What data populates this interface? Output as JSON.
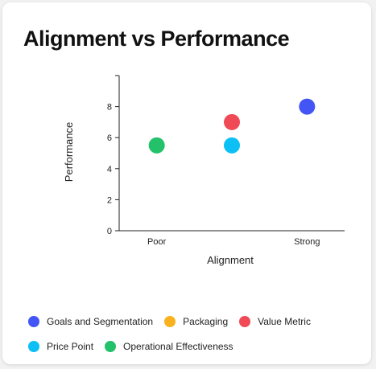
{
  "chart_data": {
    "type": "scatter",
    "title": "Alignment vs Performance",
    "xlabel": "Alignment",
    "ylabel": "Performance",
    "x_categories": [
      "Poor",
      "",
      "Strong"
    ],
    "xlim": [
      0,
      3
    ],
    "ylim": [
      0,
      10
    ],
    "yticks": [
      0,
      2,
      4,
      6,
      8
    ],
    "grid": false,
    "legend_position": "bottom",
    "series": [
      {
        "name": "Goals and Segmentation",
        "color": "#4355f5",
        "points": [
          {
            "x": "Strong",
            "y": 8
          }
        ]
      },
      {
        "name": "Packaging",
        "color": "#f9b21e",
        "points": []
      },
      {
        "name": "Value Metric",
        "color": "#ef4a55",
        "points": [
          {
            "x": "",
            "y": 7
          }
        ]
      },
      {
        "name": "Price Point",
        "color": "#0cc0f5",
        "points": [
          {
            "x": "",
            "y": 5.5
          }
        ]
      },
      {
        "name": "Operational Effectiveness",
        "color": "#22c16a",
        "points": [
          {
            "x": "Poor",
            "y": 5.5
          }
        ]
      }
    ]
  }
}
